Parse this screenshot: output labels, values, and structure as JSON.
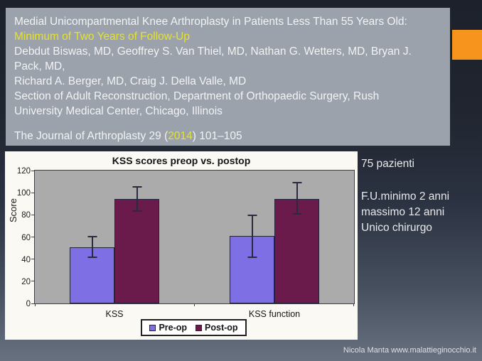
{
  "header": {
    "title_line1": "Medial Unicompartmental Knee Arthroplasty in Patients Less Than 55 Years Old:",
    "title_line2": "Minimum of Two Years of Follow-Up",
    "authors_line1": "Debdut Biswas, MD, Geoffrey S. Van Thiel, MD, Nathan G. Wetters, MD, Bryan J.",
    "authors_line2": "Pack, MD,",
    "authors_line3": "Richard A. Berger, MD, Craig J. Della Valle, MD",
    "affiliation_line1": "Section of Adult Reconstruction, Department of Orthopaedic Surgery, Rush",
    "affiliation_line2": "University Medical Center, Chicago, Illinois",
    "journal_prefix": "The Journal of Arthroplasty 29 (",
    "journal_year": "2014",
    "journal_suffix": ") 101–105",
    "colors": {
      "background": "#9ba2ac",
      "text": "#f2f3f4",
      "highlight": "#e5e22e"
    }
  },
  "accent": {
    "color": "#f7941e"
  },
  "chart_data": {
    "type": "bar",
    "title": "KSS scores preop vs. postop",
    "xlabel": "",
    "ylabel": "Score",
    "categories": [
      "KSS",
      "KSS function"
    ],
    "series": [
      {
        "name": "Pre-op",
        "color": "#7e6fe4",
        "values": [
          51,
          61
        ],
        "error_low": [
          41,
          41
        ],
        "error_high": [
          61,
          80
        ]
      },
      {
        "name": "Post-op",
        "color": "#6b1b4b",
        "values": [
          94.5,
          94.5
        ],
        "error_low": [
          83,
          80
        ],
        "error_high": [
          106,
          110
        ]
      }
    ],
    "ylim": [
      0,
      120
    ],
    "yticks": [
      0,
      20,
      40,
      60,
      80,
      100,
      120
    ],
    "grid": false,
    "legend_position": "bottom",
    "plot_bg": "#ababab"
  },
  "notes": {
    "line1": "75 pazienti",
    "line2": "F.U.minimo 2 anni",
    "line3": "massimo 12 anni",
    "line4": "Unico chirurgo"
  },
  "footer": {
    "credit": "Nicola Manta www.malattieginocchio.it"
  }
}
